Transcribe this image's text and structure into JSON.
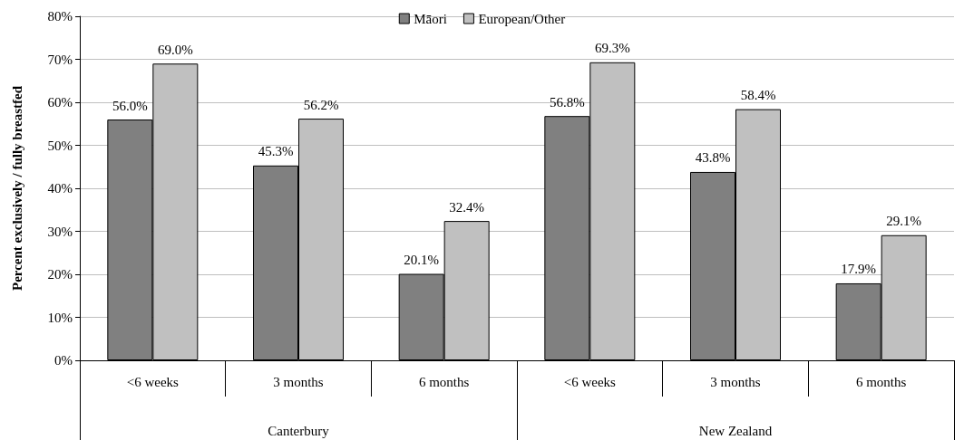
{
  "chart_data": {
    "type": "bar",
    "ylabel": "Percent exclusively / fully breastfed",
    "categories": [
      "<6 weeks",
      "3 months",
      "6 months",
      "<6 weeks",
      "3 months",
      "6 months"
    ],
    "annotations": [
      "Canterbury",
      "New Zealand"
    ],
    "series": [
      {
        "name": "Māori",
        "color": "#808080",
        "values": [
          56.0,
          45.3,
          20.1,
          56.8,
          43.8,
          17.9
        ],
        "value_labels": [
          "56.0%",
          "45.3%",
          "20.1%",
          "56.8%",
          "43.8%",
          "17.9%"
        ]
      },
      {
        "name": "European/Other",
        "color": "#c0c0c0",
        "values": [
          69.0,
          56.2,
          32.4,
          69.3,
          58.4,
          29.1
        ],
        "value_labels": [
          "69.0%",
          "56.2%",
          "32.4%",
          "69.3%",
          "58.4%",
          "29.1%"
        ]
      }
    ],
    "ylim": [
      0,
      80
    ],
    "yticks": [
      {
        "value": 0,
        "label": "0%"
      },
      {
        "value": 10,
        "label": "10%"
      },
      {
        "value": 20,
        "label": "20%"
      },
      {
        "value": 30,
        "label": "30%"
      },
      {
        "value": 40,
        "label": "40%"
      },
      {
        "value": 50,
        "label": "50%"
      },
      {
        "value": 60,
        "label": "60%"
      },
      {
        "value": 70,
        "label": "70%"
      },
      {
        "value": 80,
        "label": "80%"
      }
    ],
    "grid": "y",
    "legend": "top"
  }
}
